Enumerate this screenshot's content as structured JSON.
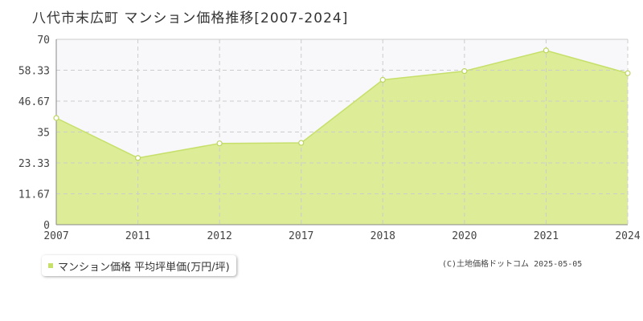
{
  "title": "八代市末広町 マンション価格推移[2007-2024]",
  "credit": "(C)土地価格ドットコム 2025-05-05",
  "colors": {
    "fill": "#dcec97",
    "line": "#c6e06a",
    "marker_stroke": "#bcd660",
    "grid": "#cccccc",
    "band": "#f8f7fa",
    "axis": "#888888"
  },
  "chart_data": {
    "type": "area",
    "title": "八代市末広町 マンション価格推移[2007-2024]",
    "xlabel": "",
    "ylabel": "",
    "categories": [
      "2007",
      "2011",
      "2012",
      "2017",
      "2018",
      "2020",
      "2021",
      "2024"
    ],
    "ylim": [
      0,
      70
    ],
    "yticks": [
      "0",
      "11.67",
      "23.33",
      "35",
      "46.67",
      "58.33",
      "70"
    ],
    "grid": true,
    "legend_position": "bottom-left",
    "series": [
      {
        "name": "マンション価格 平均坪単価(万円/坪)",
        "values": [
          40.3,
          25.2,
          30.7,
          30.9,
          54.7,
          58.0,
          65.8,
          57.2
        ]
      }
    ]
  }
}
